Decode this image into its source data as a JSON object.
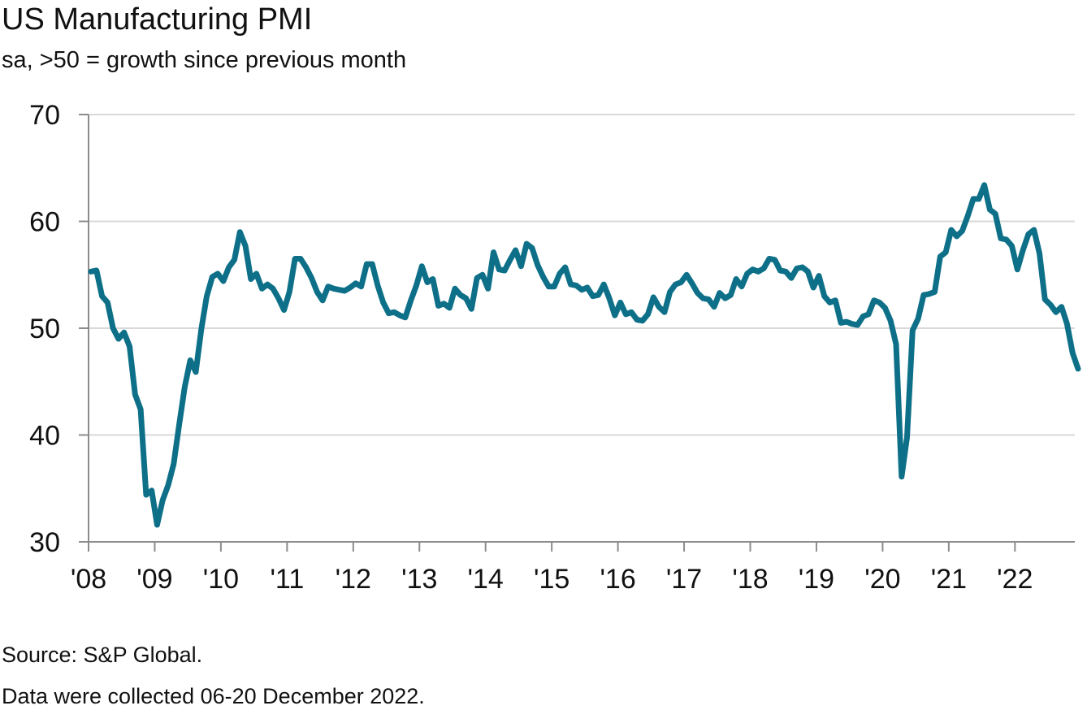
{
  "header": {
    "title": "US Manufacturing PMI",
    "subtitle": "sa, >50 = growth since previous month"
  },
  "footer": {
    "source": "Source: S&P Global.",
    "note": "Data were collected 06-20 December 2022."
  },
  "colors": {
    "line": "#0e7088",
    "grid": "#d9d9d9",
    "axis": "#8c8c8c"
  },
  "chart_data": {
    "type": "line",
    "title": "US Manufacturing PMI",
    "subtitle": "sa, >50 = growth since previous month",
    "xlabel": "",
    "ylabel": "",
    "ylim": [
      30,
      70
    ],
    "yticks": [
      30,
      40,
      50,
      60,
      70
    ],
    "ytick_labels": [
      "30",
      "40",
      "50",
      "60",
      "70"
    ],
    "xlim": [
      "2008-01",
      "2022-12"
    ],
    "xtick_labels": [
      "'08",
      "'09",
      "'10",
      "'11",
      "'12",
      "'13",
      "'14",
      "'15",
      "'16",
      "'17",
      "'18",
      "'19",
      "'20",
      "'21",
      "'22"
    ],
    "grid": "horizontal",
    "legend": "none",
    "frequency": "monthly",
    "start": "2008-01",
    "series": [
      {
        "name": "US Manufacturing PMI",
        "values": [
          55.3,
          55.4,
          53.0,
          52.4,
          50.0,
          49.0,
          49.6,
          48.3,
          43.8,
          42.4,
          34.4,
          34.8,
          31.6,
          33.9,
          35.3,
          37.3,
          41.0,
          44.5,
          47.0,
          45.9,
          49.9,
          53.0,
          54.8,
          55.1,
          54.4,
          55.7,
          56.4,
          59.0,
          57.7,
          54.6,
          55.1,
          53.7,
          54.1,
          53.7,
          52.8,
          51.7,
          53.4,
          56.5,
          56.5,
          55.7,
          54.7,
          53.4,
          52.6,
          53.9,
          53.7,
          53.6,
          53.5,
          53.8,
          54.2,
          53.9,
          56.0,
          56.0,
          54.0,
          52.4,
          51.4,
          51.5,
          51.2,
          51.0,
          52.6,
          54.0,
          55.8,
          54.3,
          54.6,
          52.1,
          52.3,
          51.9,
          53.7,
          53.1,
          52.8,
          51.8,
          54.7,
          55.0,
          53.7,
          57.1,
          55.5,
          55.4,
          56.4,
          57.3,
          55.8,
          57.9,
          57.5,
          55.9,
          54.8,
          53.9,
          53.9,
          55.1,
          55.7,
          54.1,
          54.0,
          53.6,
          53.8,
          53.0,
          53.1,
          54.1,
          52.8,
          51.2,
          52.4,
          51.3,
          51.5,
          50.8,
          50.7,
          51.3,
          52.9,
          52.0,
          51.5,
          53.4,
          54.1,
          54.3,
          55.0,
          54.2,
          53.3,
          52.8,
          52.7,
          52.0,
          53.3,
          52.8,
          53.1,
          54.6,
          53.9,
          55.1,
          55.5,
          55.3,
          55.6,
          56.5,
          56.4,
          55.4,
          55.3,
          54.7,
          55.6,
          55.7,
          55.3,
          53.8,
          54.9,
          53.0,
          52.4,
          52.6,
          50.5,
          50.6,
          50.4,
          50.3,
          51.1,
          51.3,
          52.6,
          52.4,
          51.9,
          50.7,
          48.5,
          36.1,
          39.8,
          49.8,
          50.9,
          53.1,
          53.2,
          53.4,
          56.7,
          57.1,
          59.2,
          58.6,
          59.1,
          60.5,
          62.1,
          62.1,
          63.4,
          61.1,
          60.7,
          58.4,
          58.3,
          57.7,
          55.5,
          57.3,
          58.8,
          59.2,
          57.0,
          52.7,
          52.2,
          51.5,
          52.0,
          50.4,
          47.7,
          46.2
        ]
      }
    ]
  }
}
